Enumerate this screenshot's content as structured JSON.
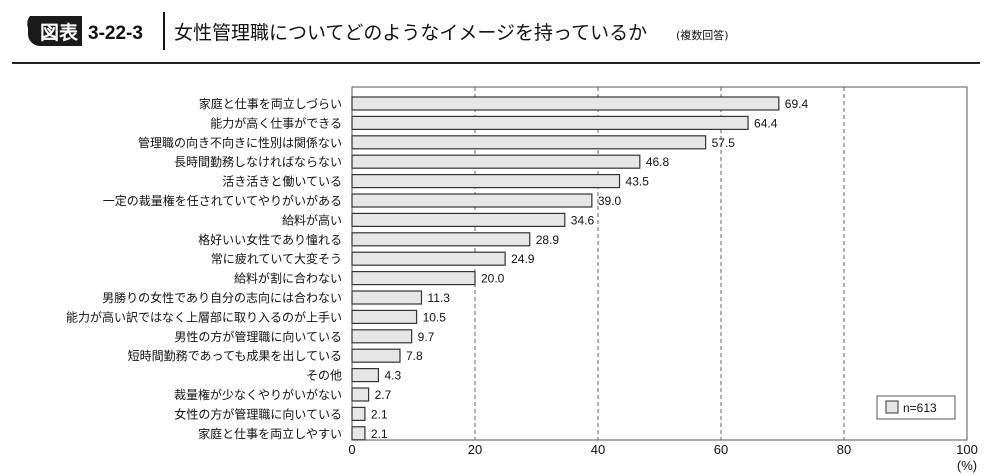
{
  "header": {
    "badge": "図表",
    "number": "3-22-3",
    "title": "女性管理職についてどのようなイメージを持っているか",
    "note": "(複数回答)"
  },
  "colors": {
    "bar": "#e6e6e6",
    "bar_stroke": "#333333",
    "badge": "#1a1a1a"
  },
  "chart_data": {
    "type": "bar",
    "orientation": "horizontal",
    "title": "女性管理職についてどのようなイメージを持っているか",
    "categories": [
      "家庭と仕事を両立しづらい",
      "能力が高く仕事ができる",
      "管理職の向き不向きに性別は関係ない",
      "長時間勤務しなければならない",
      "活き活きと働いている",
      "一定の裁量権を任されていてやりがいがある",
      "給料が高い",
      "格好いい女性であり憧れる",
      "常に疲れていて大変そう",
      "給料が割に合わない",
      "男勝りの女性であり自分の志向には合わない",
      "能力が高い訳ではなく上層部に取り入るのが上手い",
      "男性の方が管理職に向いている",
      "短時間勤務であっても成果を出している",
      "その他",
      "裁量権が少なくやりがいがない",
      "女性の方が管理職に向いている",
      "家庭と仕事を両立しやすい"
    ],
    "values": [
      69.4,
      64.4,
      57.5,
      46.8,
      43.5,
      39.0,
      34.6,
      28.9,
      24.9,
      20.0,
      11.3,
      10.5,
      9.7,
      7.8,
      4.3,
      2.7,
      2.1,
      2.1
    ],
    "value_labels": [
      "69.4",
      "64.4",
      "57.5",
      "46.8",
      "43.5",
      "39.0",
      "34.6",
      "28.9",
      "24.9",
      "20.0",
      "11.3",
      "10.5",
      "9.7",
      "7.8",
      "4.3",
      "2.7",
      "2.1",
      "2.1"
    ],
    "xlim": [
      0,
      100
    ],
    "xticks": [
      "0",
      "20",
      "40",
      "60",
      "80",
      "100"
    ],
    "xunit": "(%)",
    "grid": "vertical dashed",
    "legend": {
      "label": "n=613",
      "position": "bottom-right"
    }
  }
}
